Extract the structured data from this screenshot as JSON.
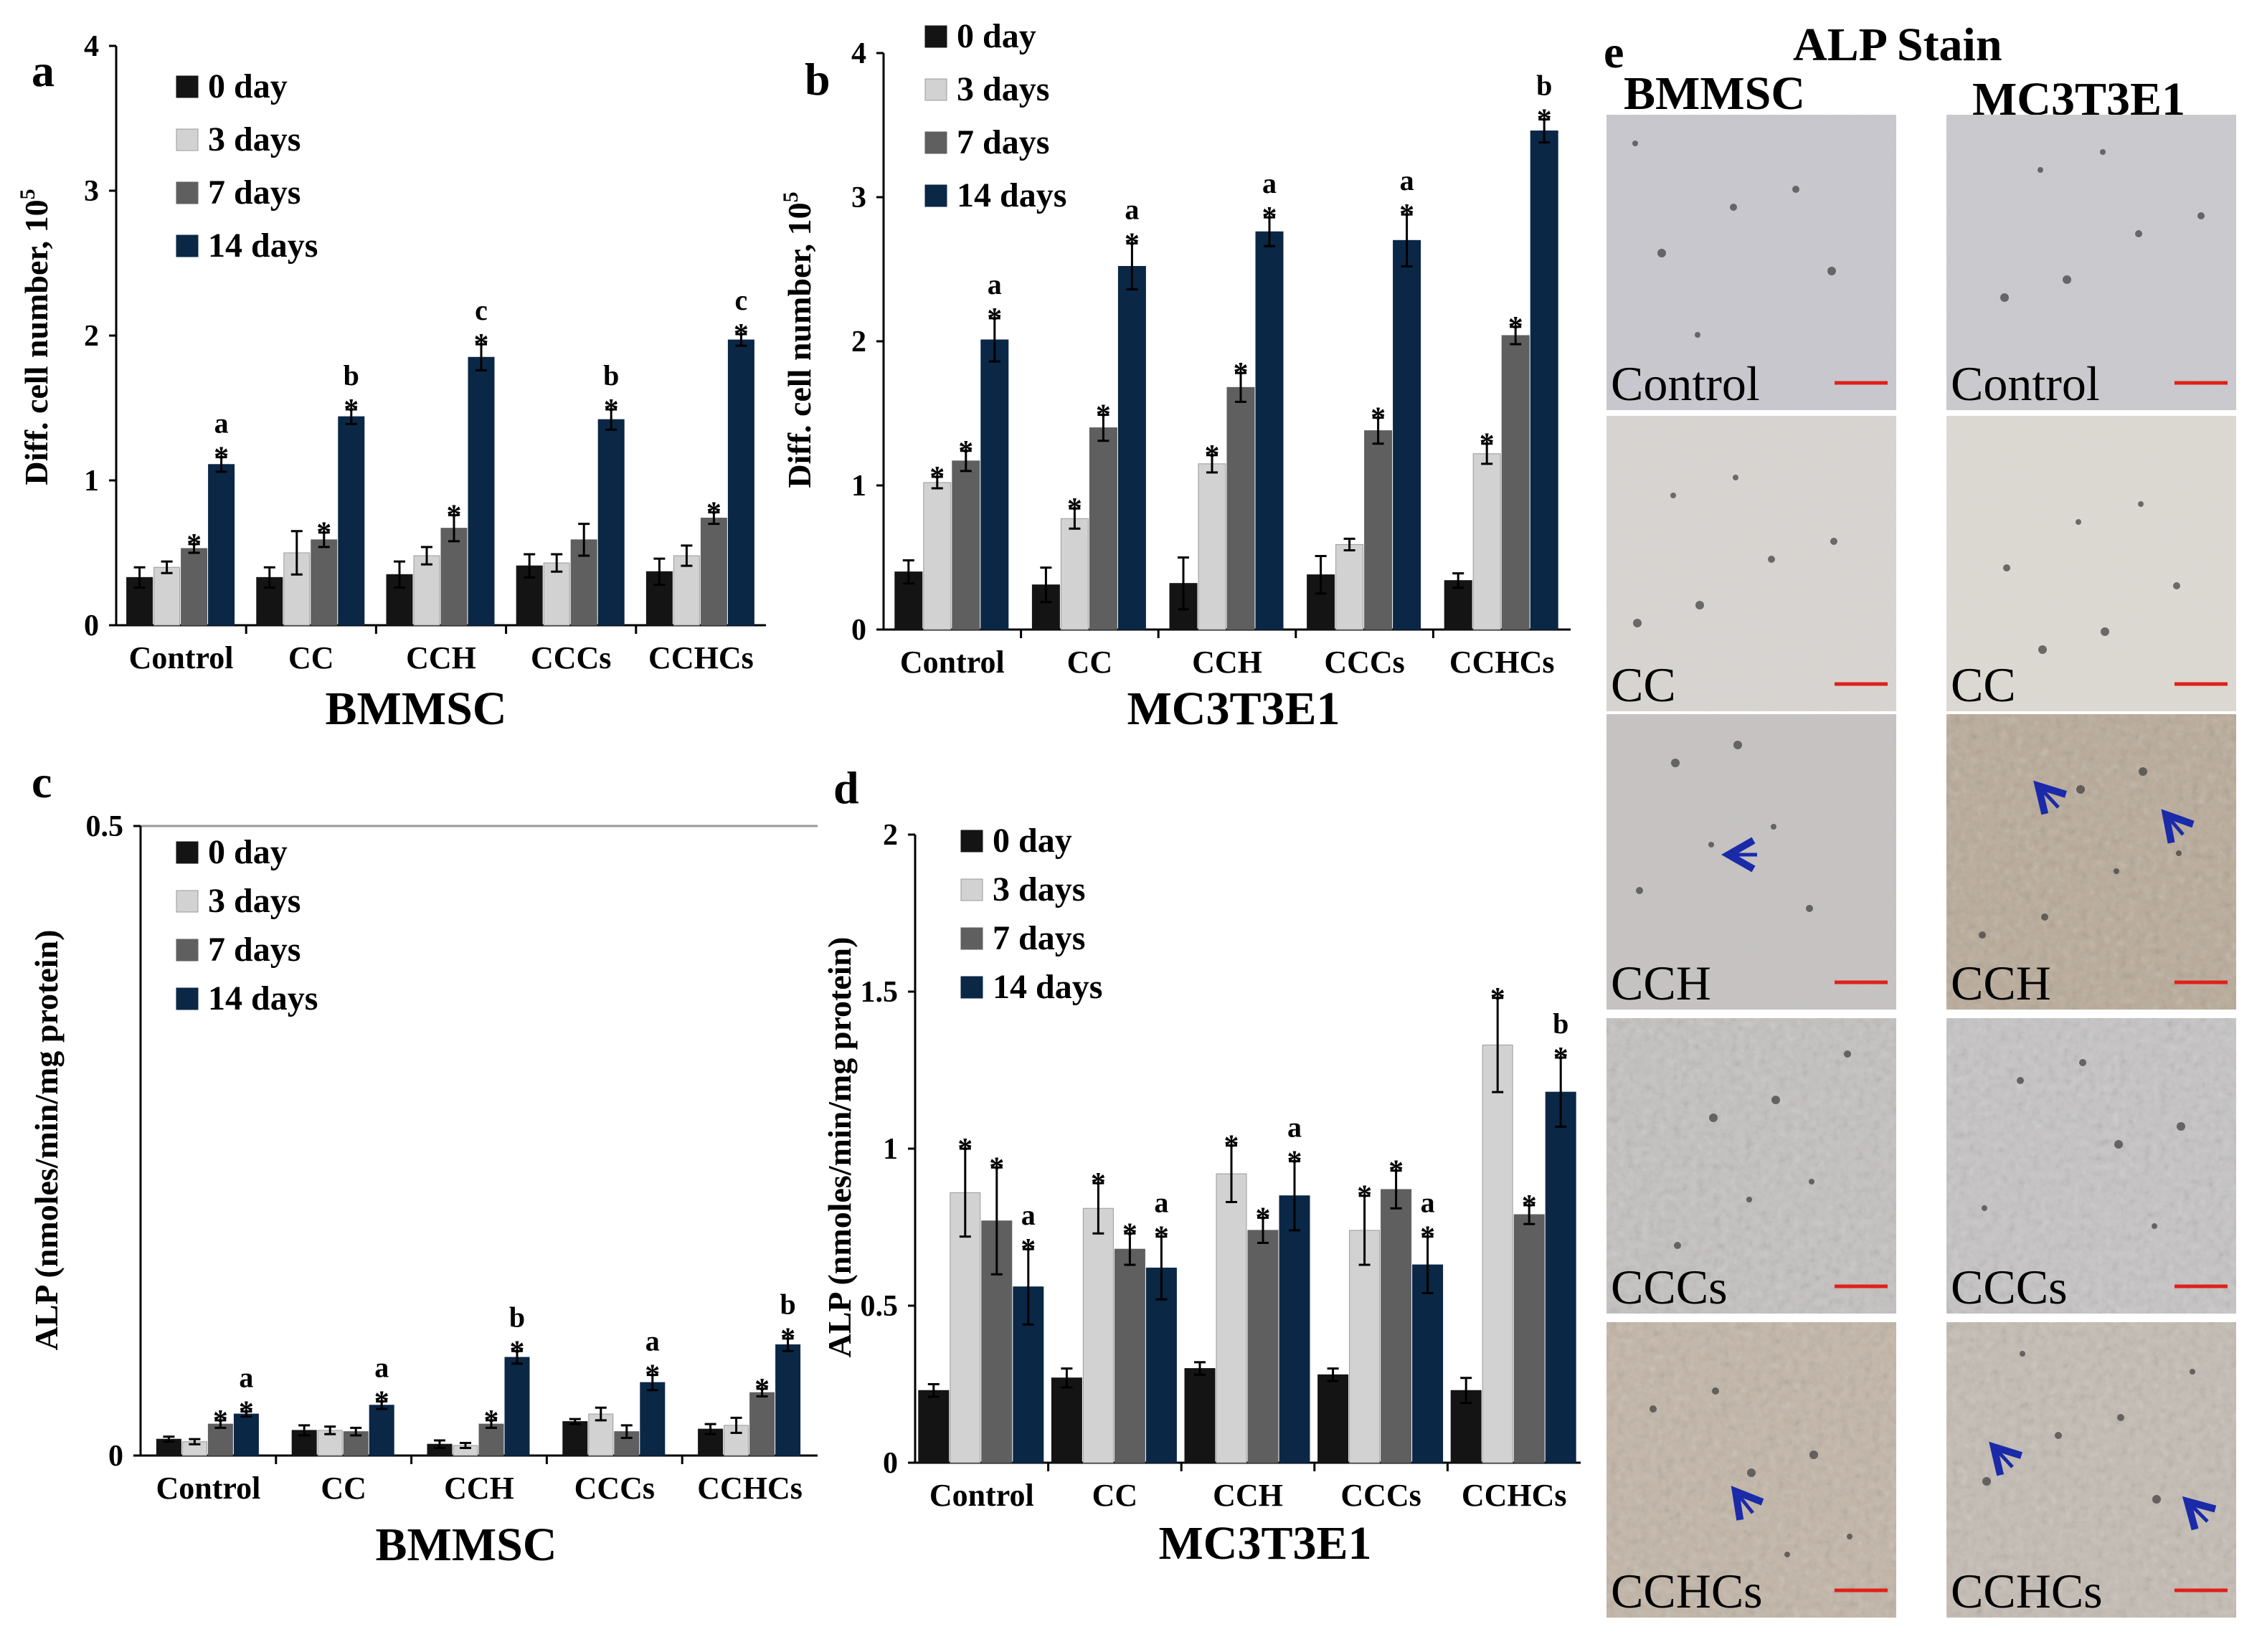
{
  "figure": {
    "panel_letters": [
      "a",
      "b",
      "c",
      "d",
      "e"
    ],
    "colors": {
      "0 day": "#141414",
      "3 days": "#d2d2d2",
      "7 days": "#5f5f5f",
      "14 days": "#0b2746"
    }
  },
  "chart_data": [
    {
      "id": "a",
      "type": "bar",
      "title": "BMMSC",
      "xlabel": "BMMSC",
      "ylabel": "Diff. cell number, 10",
      "ylabel_sup": "5",
      "ylim": [
        0,
        4
      ],
      "yticks": [
        0,
        1,
        2,
        3,
        4
      ],
      "grid": false,
      "categories": [
        "Control",
        "CC",
        "CCH",
        "CCCs",
        "CCHCs"
      ],
      "series": [
        {
          "name": "0 day",
          "values": [
            0.33,
            0.33,
            0.35,
            0.41,
            0.37
          ],
          "errors": [
            0.07,
            0.07,
            0.09,
            0.08,
            0.09
          ],
          "stars": [
            false,
            false,
            false,
            false,
            false
          ],
          "letters": [
            "",
            "",
            "",
            "",
            ""
          ]
        },
        {
          "name": "3 days",
          "values": [
            0.4,
            0.5,
            0.48,
            0.43,
            0.48
          ],
          "errors": [
            0.04,
            0.15,
            0.06,
            0.06,
            0.07
          ],
          "stars": [
            false,
            false,
            false,
            false,
            false
          ],
          "letters": [
            "",
            "",
            "",
            "",
            ""
          ]
        },
        {
          "name": "7 days",
          "values": [
            0.53,
            0.59,
            0.67,
            0.59,
            0.74
          ],
          "errors": [
            0.03,
            0.05,
            0.09,
            0.11,
            0.04
          ],
          "stars": [
            true,
            true,
            true,
            false,
            true
          ],
          "letters": [
            "",
            "",
            "",
            "",
            ""
          ]
        },
        {
          "name": "14 days",
          "values": [
            1.11,
            1.44,
            1.85,
            1.42,
            1.97
          ],
          "errors": [
            0.05,
            0.05,
            0.09,
            0.07,
            0.04
          ],
          "stars": [
            true,
            true,
            true,
            true,
            true
          ],
          "letters": [
            "a",
            "b",
            "c",
            "b",
            "c"
          ]
        }
      ],
      "legend": [
        "0 day",
        "3 days",
        "7 days",
        "14 days"
      ]
    },
    {
      "id": "b",
      "type": "bar",
      "title": "MC3T3E1",
      "xlabel": "MC3T3E1",
      "ylabel": "Diff. cell number, 10",
      "ylabel_sup": "5",
      "ylim": [
        0,
        4
      ],
      "yticks": [
        0,
        1,
        2,
        3,
        4
      ],
      "grid": false,
      "categories": [
        "Control",
        "CC",
        "CCH",
        "CCCs",
        "CCHCs"
      ],
      "series": [
        {
          "name": "0 day",
          "values": [
            0.4,
            0.31,
            0.32,
            0.38,
            0.34
          ],
          "errors": [
            0.08,
            0.12,
            0.18,
            0.13,
            0.05
          ],
          "stars": [
            false,
            false,
            false,
            false,
            false
          ],
          "letters": [
            "",
            "",
            "",
            "",
            ""
          ]
        },
        {
          "name": "3 days",
          "values": [
            1.02,
            0.77,
            1.15,
            0.59,
            1.22
          ],
          "errors": [
            0.04,
            0.07,
            0.06,
            0.04,
            0.07
          ],
          "stars": [
            true,
            true,
            true,
            false,
            true
          ],
          "letters": [
            "",
            "",
            "",
            "",
            ""
          ]
        },
        {
          "name": "7 days",
          "values": [
            1.17,
            1.4,
            1.68,
            1.38,
            2.04
          ],
          "errors": [
            0.07,
            0.09,
            0.1,
            0.09,
            0.06
          ],
          "stars": [
            true,
            true,
            true,
            true,
            true
          ],
          "letters": [
            "",
            "",
            "",
            "",
            ""
          ]
        },
        {
          "name": "14 days",
          "values": [
            2.01,
            2.52,
            2.76,
            2.7,
            3.46
          ],
          "errors": [
            0.15,
            0.16,
            0.1,
            0.18,
            0.08
          ],
          "stars": [
            true,
            true,
            true,
            true,
            true
          ],
          "letters": [
            "a",
            "a",
            "a",
            "a",
            "b"
          ]
        }
      ],
      "legend": [
        "0 day",
        "3 days",
        "7 days",
        "14 days"
      ]
    },
    {
      "id": "c",
      "type": "bar",
      "title": "BMMSC",
      "xlabel": "BMMSC",
      "ylabel": "ALP (nmoles/min/mg protein)",
      "ylim": [
        0,
        0.5
      ],
      "yticks": [
        0,
        0.5
      ],
      "grid": true,
      "categories": [
        "Control",
        "CC",
        "CCH",
        "CCCs",
        "CCHCs"
      ],
      "series": [
        {
          "name": "0 day",
          "values": [
            0.013,
            0.02,
            0.009,
            0.027,
            0.021
          ],
          "errors": [
            0.002,
            0.004,
            0.003,
            0.002,
            0.004
          ],
          "stars": [
            false,
            false,
            false,
            false,
            false
          ],
          "letters": [
            "",
            "",
            "",
            "",
            ""
          ]
        },
        {
          "name": "3 days",
          "values": [
            0.011,
            0.02,
            0.008,
            0.033,
            0.024
          ],
          "errors": [
            0.002,
            0.003,
            0.002,
            0.005,
            0.006
          ],
          "stars": [
            false,
            false,
            false,
            false,
            false
          ],
          "letters": [
            "",
            "",
            "",
            "",
            ""
          ]
        },
        {
          "name": "7 days",
          "values": [
            0.025,
            0.019,
            0.025,
            0.019,
            0.05
          ],
          "errors": [
            0.003,
            0.003,
            0.003,
            0.005,
            0.003
          ],
          "stars": [
            true,
            false,
            true,
            false,
            true
          ],
          "letters": [
            "",
            "",
            "",
            "",
            ""
          ]
        },
        {
          "name": "14 days",
          "values": [
            0.033,
            0.04,
            0.078,
            0.058,
            0.088
          ],
          "errors": [
            0.002,
            0.003,
            0.005,
            0.006,
            0.005
          ],
          "stars": [
            true,
            true,
            true,
            true,
            true
          ],
          "letters": [
            "a",
            "a",
            "b",
            "a",
            "b"
          ]
        }
      ],
      "legend": [
        "0 day",
        "3 days",
        "7 days",
        "14 days"
      ]
    },
    {
      "id": "d",
      "type": "bar",
      "title": "MC3T3E1",
      "xlabel": "MC3T3E1",
      "ylabel": "ALP (nmoles/min/mg protein)",
      "ylim": [
        0,
        2
      ],
      "yticks": [
        0,
        0.5,
        1,
        1.5,
        2
      ],
      "grid": false,
      "categories": [
        "Control",
        "CC",
        "CCH",
        "CCCs",
        "CCHCs"
      ],
      "series": [
        {
          "name": "0 day",
          "values": [
            0.23,
            0.27,
            0.3,
            0.28,
            0.23
          ],
          "errors": [
            0.02,
            0.03,
            0.02,
            0.02,
            0.04
          ],
          "stars": [
            false,
            false,
            false,
            false,
            false
          ],
          "letters": [
            "",
            "",
            "",
            "",
            ""
          ]
        },
        {
          "name": "3 days",
          "values": [
            0.86,
            0.81,
            0.92,
            0.74,
            1.33
          ],
          "errors": [
            0.14,
            0.08,
            0.09,
            0.11,
            0.15
          ],
          "stars": [
            true,
            true,
            true,
            true,
            true
          ],
          "letters": [
            "",
            "",
            "",
            "",
            ""
          ]
        },
        {
          "name": "7 days",
          "values": [
            0.77,
            0.68,
            0.74,
            0.87,
            0.79
          ],
          "errors": [
            0.17,
            0.05,
            0.04,
            0.06,
            0.03
          ],
          "stars": [
            true,
            true,
            true,
            true,
            true
          ],
          "letters": [
            "",
            "",
            "",
            "",
            ""
          ]
        },
        {
          "name": "14 days",
          "values": [
            0.56,
            0.62,
            0.85,
            0.63,
            1.18
          ],
          "errors": [
            0.12,
            0.1,
            0.11,
            0.09,
            0.11
          ],
          "stars": [
            true,
            true,
            true,
            true,
            true
          ],
          "letters": [
            "a",
            "a",
            "a",
            "a",
            "b"
          ]
        }
      ],
      "legend": [
        "0 day",
        "3 days",
        "7 days",
        "14 days"
      ]
    }
  ],
  "photo_panel": {
    "title": "ALP Stain",
    "columns": [
      "BMMSC",
      "MC3T3E1"
    ],
    "rows": [
      "Control",
      "CC",
      "CCH",
      "CCCs",
      "CCHCs"
    ]
  }
}
